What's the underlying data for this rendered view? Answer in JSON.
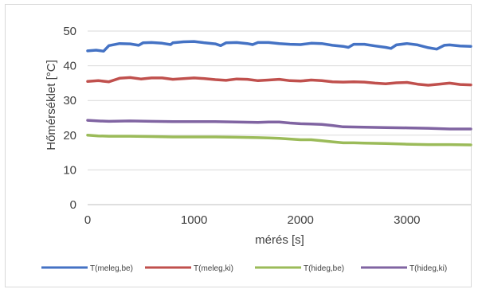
{
  "chart_data": {
    "type": "line",
    "title": "",
    "xlabel": "mérés [s]",
    "ylabel": "Hőmérséklet [°C]",
    "xlim": [
      0,
      3600
    ],
    "ylim": [
      0,
      50
    ],
    "xticks": [
      0,
      1000,
      2000,
      3000
    ],
    "yticks": [
      0,
      10,
      20,
      30,
      40,
      50
    ],
    "grid": "horizontal",
    "legend_position": "bottom",
    "series": [
      {
        "name": "T(meleg,be)",
        "color": "#4472c4",
        "x": [
          0,
          80,
          150,
          200,
          300,
          400,
          480,
          520,
          600,
          700,
          780,
          800,
          900,
          1000,
          1100,
          1200,
          1250,
          1300,
          1400,
          1500,
          1550,
          1600,
          1700,
          1800,
          1900,
          2000,
          2100,
          2200,
          2300,
          2400,
          2450,
          2500,
          2600,
          2700,
          2800,
          2850,
          2900,
          3000,
          3100,
          3200,
          3280,
          3350,
          3400,
          3500,
          3600
        ],
        "y": [
          44.3,
          44.5,
          44.2,
          45.8,
          46.4,
          46.3,
          45.9,
          46.6,
          46.7,
          46.5,
          46.1,
          46.6,
          46.9,
          47.0,
          46.6,
          46.3,
          45.8,
          46.6,
          46.7,
          46.4,
          46.1,
          46.7,
          46.7,
          46.4,
          46.2,
          46.1,
          46.5,
          46.4,
          45.9,
          45.6,
          45.3,
          46.2,
          46.2,
          45.7,
          45.3,
          45.0,
          46.0,
          46.4,
          46.0,
          45.2,
          44.8,
          45.9,
          46.0,
          45.7,
          45.6
        ]
      },
      {
        "name": "T(meleg,ki)",
        "color": "#c0504d",
        "x": [
          0,
          100,
          200,
          300,
          400,
          500,
          600,
          700,
          800,
          900,
          1000,
          1100,
          1200,
          1300,
          1400,
          1500,
          1600,
          1700,
          1800,
          1900,
          2000,
          2100,
          2200,
          2300,
          2400,
          2500,
          2600,
          2700,
          2800,
          2900,
          3000,
          3100,
          3200,
          3300,
          3400,
          3500,
          3600
        ],
        "y": [
          35.5,
          35.7,
          35.4,
          36.4,
          36.6,
          36.2,
          36.5,
          36.5,
          36.1,
          36.3,
          36.5,
          36.3,
          36.0,
          35.8,
          36.2,
          36.1,
          35.7,
          35.9,
          36.1,
          35.7,
          35.6,
          35.9,
          35.7,
          35.4,
          35.3,
          35.4,
          35.3,
          35.0,
          34.8,
          35.1,
          35.2,
          34.7,
          34.4,
          34.7,
          35.0,
          34.6,
          34.5
        ]
      },
      {
        "name": "T(hideg,be)",
        "color": "#9bbb59",
        "x": [
          0,
          100,
          200,
          400,
          600,
          800,
          1000,
          1200,
          1400,
          1600,
          1700,
          1800,
          1900,
          2000,
          2100,
          2200,
          2300,
          2400,
          2500,
          2600,
          2800,
          3000,
          3200,
          3400,
          3600
        ],
        "y": [
          20.0,
          19.8,
          19.7,
          19.7,
          19.6,
          19.5,
          19.5,
          19.5,
          19.4,
          19.3,
          19.2,
          19.1,
          18.9,
          18.7,
          18.7,
          18.4,
          18.1,
          17.8,
          17.8,
          17.7,
          17.6,
          17.4,
          17.3,
          17.3,
          17.2
        ]
      },
      {
        "name": "T(hideg,ki)",
        "color": "#8064a2",
        "x": [
          0,
          100,
          200,
          400,
          600,
          800,
          1000,
          1200,
          1400,
          1600,
          1700,
          1800,
          1900,
          2000,
          2100,
          2200,
          2300,
          2400,
          2600,
          2800,
          3000,
          3200,
          3400,
          3600
        ],
        "y": [
          24.3,
          24.1,
          24.0,
          24.1,
          24.0,
          23.9,
          23.9,
          23.9,
          23.8,
          23.7,
          23.8,
          23.8,
          23.5,
          23.3,
          23.2,
          23.1,
          22.8,
          22.4,
          22.3,
          22.2,
          22.1,
          22.0,
          21.8,
          21.8
        ]
      }
    ]
  }
}
